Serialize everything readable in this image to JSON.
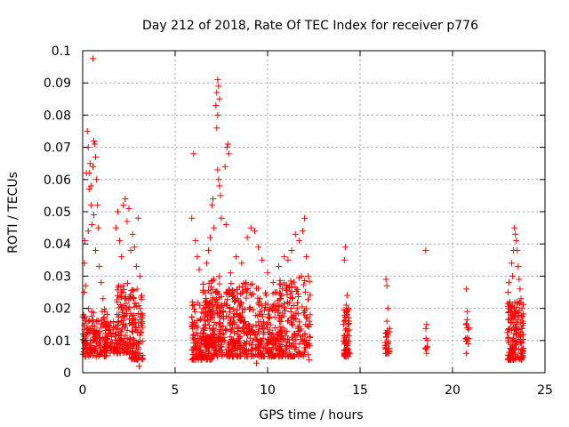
{
  "chart_data": {
    "type": "scatter",
    "title": "Day 212 of 2018, Rate Of TEC Index for receiver p776",
    "xlabel": "GPS time / hours",
    "ylabel": "ROTI / TECUs",
    "xlim": [
      0,
      25
    ],
    "ylim": [
      0,
      0.1
    ],
    "xticks": [
      0,
      5,
      10,
      15,
      20,
      25
    ],
    "xtick_labels": [
      "0",
      "5",
      "10",
      "15",
      "20",
      "25"
    ],
    "yticks": [
      0,
      0.01,
      0.02,
      0.03,
      0.04,
      0.05,
      0.06,
      0.07,
      0.08,
      0.09,
      0.1
    ],
    "ytick_labels": [
      "0",
      "0.01",
      "0.02",
      "0.03",
      "0.04",
      "0.05",
      "0.06",
      "0.07",
      "0.08",
      "0.09",
      "0.1"
    ],
    "grid": true,
    "marker": "+",
    "color": "#ff0000",
    "series": [
      {
        "name": "ROTI p776",
        "points": [
          [
            0.02,
            0.012
          ],
          [
            0.05,
            0.018
          ],
          [
            0.08,
            0.025
          ],
          [
            0.1,
            0.034
          ],
          [
            0.12,
            0.041
          ],
          [
            0.15,
            0.027
          ],
          [
            0.2,
            0.062
          ],
          [
            0.25,
            0.075
          ],
          [
            0.3,
            0.07
          ],
          [
            0.35,
            0.057
          ],
          [
            0.4,
            0.065
          ],
          [
            0.45,
            0.052
          ],
          [
            0.5,
            0.046
          ],
          [
            0.55,
            0.064
          ],
          [
            0.6,
            0.072
          ],
          [
            0.65,
            0.071
          ],
          [
            0.7,
            0.067
          ],
          [
            0.75,
            0.06
          ],
          [
            0.8,
            0.052
          ],
          [
            0.85,
            0.045
          ],
          [
            0.9,
            0.033
          ],
          [
            1.0,
            0.028
          ],
          [
            1.1,
            0.023
          ],
          [
            1.2,
            0.019
          ],
          [
            0.55,
            0.0975
          ],
          [
            0.35,
            0.062
          ],
          [
            0.45,
            0.058
          ],
          [
            0.6,
            0.049
          ],
          [
            0.3,
            0.044
          ],
          [
            0.7,
            0.038
          ],
          [
            1.8,
            0.045
          ],
          [
            1.9,
            0.05
          ],
          [
            2.0,
            0.041
          ],
          [
            2.1,
            0.036
          ],
          [
            2.2,
            0.052
          ],
          [
            2.3,
            0.054
          ],
          [
            2.4,
            0.047
          ],
          [
            2.5,
            0.051
          ],
          [
            2.6,
            0.038
          ],
          [
            2.7,
            0.043
          ],
          [
            2.8,
            0.039
          ],
          [
            2.9,
            0.033
          ],
          [
            3.0,
            0.048
          ],
          [
            3.1,
            0.03
          ],
          [
            3.2,
            0.024
          ],
          [
            2.95,
            0.004
          ],
          [
            3.05,
            0.002
          ],
          [
            3.1,
            0.006
          ],
          [
            5.9,
            0.048
          ],
          [
            6.0,
            0.068
          ],
          [
            6.1,
            0.041
          ],
          [
            6.2,
            0.036
          ],
          [
            6.3,
            0.032
          ],
          [
            6.5,
            0.025
          ],
          [
            6.7,
            0.034
          ],
          [
            6.8,
            0.038
          ],
          [
            6.9,
            0.042
          ],
          [
            7.0,
            0.052
          ],
          [
            7.05,
            0.054
          ],
          [
            7.1,
            0.045
          ],
          [
            7.2,
            0.083
          ],
          [
            7.25,
            0.087
          ],
          [
            7.3,
            0.091
          ],
          [
            7.35,
            0.089
          ],
          [
            7.4,
            0.085
          ],
          [
            7.3,
            0.08
          ],
          [
            7.25,
            0.076
          ],
          [
            7.35,
            0.06
          ],
          [
            7.4,
            0.058
          ],
          [
            7.45,
            0.055
          ],
          [
            7.3,
            0.063
          ],
          [
            7.5,
            0.048
          ],
          [
            7.7,
            0.064
          ],
          [
            7.8,
            0.07
          ],
          [
            7.85,
            0.071
          ],
          [
            7.9,
            0.068
          ],
          [
            7.75,
            0.046
          ],
          [
            8.0,
            0.031
          ],
          [
            8.3,
            0.036
          ],
          [
            8.6,
            0.034
          ],
          [
            8.9,
            0.042
          ],
          [
            9.1,
            0.045
          ],
          [
            9.3,
            0.044
          ],
          [
            9.5,
            0.039
          ],
          [
            9.7,
            0.035
          ],
          [
            10.0,
            0.031
          ],
          [
            10.3,
            0.028
          ],
          [
            10.6,
            0.033
          ],
          [
            10.9,
            0.036
          ],
          [
            11.1,
            0.035
          ],
          [
            11.3,
            0.038
          ],
          [
            11.5,
            0.043
          ],
          [
            11.7,
            0.041
          ],
          [
            11.9,
            0.044
          ],
          [
            12.0,
            0.048
          ],
          [
            12.1,
            0.036
          ],
          [
            12.2,
            0.03
          ],
          [
            12.3,
            0.018
          ],
          [
            12.25,
            0.004
          ],
          [
            9.4,
            0.003
          ],
          [
            10.2,
            0.005
          ],
          [
            6.4,
            0.004
          ],
          [
            14.15,
            0.035
          ],
          [
            14.2,
            0.039
          ],
          [
            14.3,
            0.024
          ],
          [
            14.35,
            0.02
          ],
          [
            14.4,
            0.016
          ],
          [
            14.25,
            0.021
          ],
          [
            16.4,
            0.029
          ],
          [
            16.45,
            0.027
          ],
          [
            16.5,
            0.02
          ],
          [
            16.45,
            0.016
          ],
          [
            18.55,
            0.038
          ],
          [
            18.6,
            0.015
          ],
          [
            18.65,
            0.01
          ],
          [
            18.6,
            0.006
          ],
          [
            20.75,
            0.026
          ],
          [
            20.8,
            0.019
          ],
          [
            20.8,
            0.014
          ],
          [
            20.85,
            0.009
          ],
          [
            20.75,
            0.006
          ],
          [
            23.0,
            0.025
          ],
          [
            23.05,
            0.028
          ],
          [
            23.1,
            0.022
          ],
          [
            23.15,
            0.018
          ],
          [
            23.2,
            0.034
          ],
          [
            23.25,
            0.03
          ],
          [
            23.3,
            0.038
          ],
          [
            23.35,
            0.045
          ],
          [
            23.4,
            0.043
          ],
          [
            23.45,
            0.041
          ],
          [
            23.5,
            0.038
          ],
          [
            23.55,
            0.033
          ],
          [
            23.6,
            0.029
          ],
          [
            23.65,
            0.026
          ],
          [
            23.7,
            0.023
          ],
          [
            23.75,
            0.02
          ],
          [
            23.8,
            0.016
          ],
          [
            23.05,
            0.004
          ]
        ],
        "dense_bands": [
          {
            "x": [
              0.0,
              1.35
            ],
            "y": [
              0.005,
              0.02
            ],
            "n": 160
          },
          {
            "x": [
              1.2,
              1.9
            ],
            "y": [
              0.006,
              0.016
            ],
            "n": 60
          },
          {
            "x": [
              1.85,
              2.5
            ],
            "y": [
              0.006,
              0.028
            ],
            "n": 90
          },
          {
            "x": [
              2.5,
              3.25
            ],
            "y": [
              0.004,
              0.026
            ],
            "n": 110
          },
          {
            "x": [
              5.9,
              7.0
            ],
            "y": [
              0.004,
              0.022
            ],
            "n": 140
          },
          {
            "x": [
              6.5,
              7.5
            ],
            "y": [
              0.008,
              0.03
            ],
            "n": 100
          },
          {
            "x": [
              7.0,
              8.6
            ],
            "y": [
              0.005,
              0.026
            ],
            "n": 160
          },
          {
            "x": [
              8.0,
              9.6
            ],
            "y": [
              0.005,
              0.028
            ],
            "n": 170
          },
          {
            "x": [
              9.5,
              10.8
            ],
            "y": [
              0.005,
              0.025
            ],
            "n": 150
          },
          {
            "x": [
              10.6,
              12.35
            ],
            "y": [
              0.005,
              0.03
            ],
            "n": 180
          },
          {
            "x": [
              14.1,
              14.45
            ],
            "y": [
              0.005,
              0.02
            ],
            "n": 60
          },
          {
            "x": [
              16.35,
              16.6
            ],
            "y": [
              0.006,
              0.016
            ],
            "n": 28
          },
          {
            "x": [
              18.5,
              18.7
            ],
            "y": [
              0.007,
              0.014
            ],
            "n": 6
          },
          {
            "x": [
              20.7,
              20.9
            ],
            "y": [
              0.008,
              0.017
            ],
            "n": 12
          },
          {
            "x": [
              22.95,
              23.85
            ],
            "y": [
              0.004,
              0.022
            ],
            "n": 160
          }
        ]
      }
    ]
  }
}
